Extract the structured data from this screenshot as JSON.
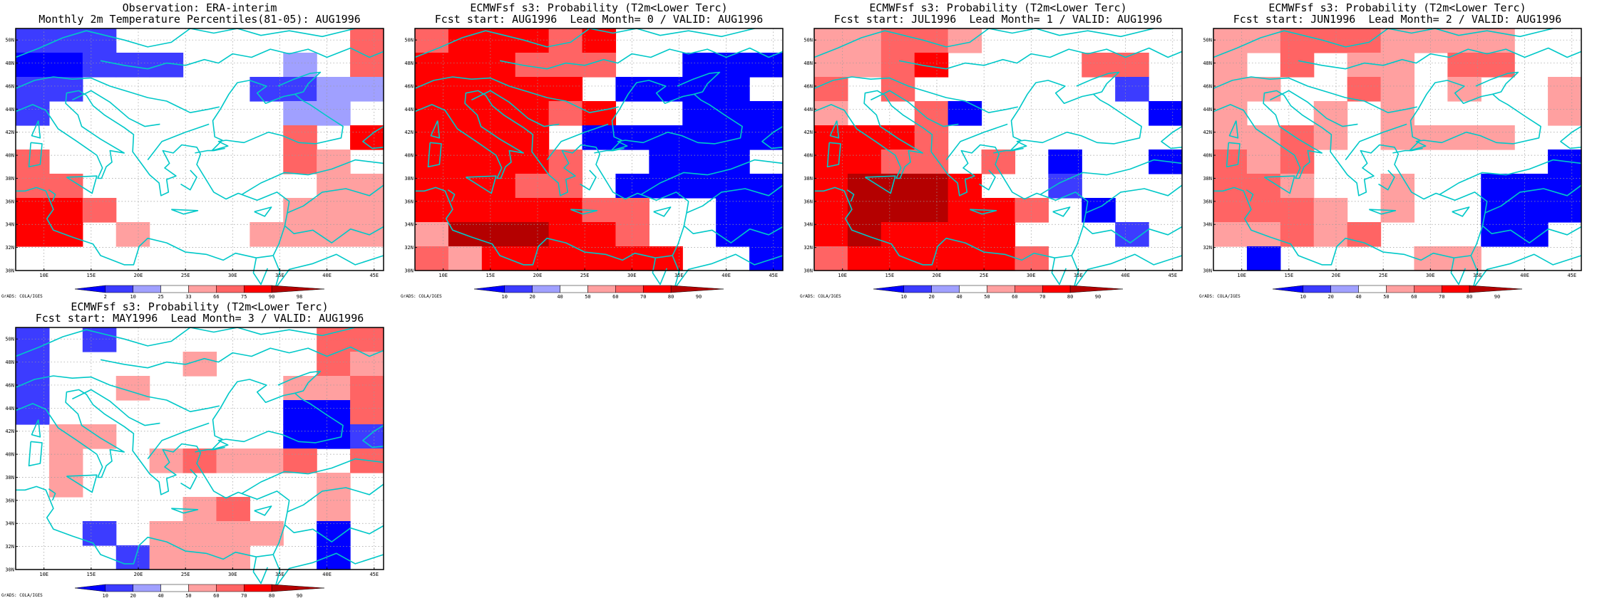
{
  "panels": [
    {
      "id": "obs",
      "title_line1": "Observation: ERA-interim",
      "title_line2": "Monthly 2m Temperature Percentiles(81-05): AUG1996",
      "colorbar_labels": [
        "2",
        "10",
        "25",
        "33",
        "66",
        "75",
        "90",
        "98"
      ],
      "credit": "GrADS: COLA/IGES"
    },
    {
      "id": "lead0",
      "title_line1": "ECMWFsf s3: Probability (T2m<Lower Terc)",
      "title_line2": "Fcst start: AUG1996  Lead Month= 0 / VALID: AUG1996",
      "colorbar_labels": [
        "10",
        "20",
        "40",
        "50",
        "60",
        "70",
        "80",
        "90"
      ],
      "credit": "GrADS: COLA/IGES"
    },
    {
      "id": "lead1",
      "title_line1": "ECMWFsf s3: Probability (T2m<Lower Terc)",
      "title_line2": "Fcst start: JUL1996  Lead Month= 1 / VALID: AUG1996",
      "colorbar_labels": [
        "10",
        "20",
        "40",
        "50",
        "60",
        "70",
        "80",
        "90"
      ],
      "credit": "GrADS: COLA/IGES"
    },
    {
      "id": "lead2",
      "title_line1": "ECMWFsf s3: Probability (T2m<Lower Terc)",
      "title_line2": "Fcst start: JUN1996  Lead Month= 2 / VALID: AUG1996",
      "colorbar_labels": [
        "10",
        "20",
        "40",
        "50",
        "60",
        "70",
        "80",
        "90"
      ],
      "credit": "GrADS: COLA/IGES"
    },
    {
      "id": "lead3",
      "title_line1": "ECMWFsf s3: Probability (T2m<Lower Terc)",
      "title_line2": "Fcst start: MAY1996  Lead Month= 3 / VALID: AUG1996",
      "colorbar_labels": [
        "10",
        "20",
        "40",
        "50",
        "60",
        "70",
        "80",
        "90"
      ],
      "credit": "GrADS: COLA/IGES"
    }
  ],
  "axes": {
    "lat_labels": [
      "30N",
      "32N",
      "34N",
      "36N",
      "38N",
      "40N",
      "42N",
      "44N",
      "46N",
      "48N",
      "50N"
    ],
    "lon_labels": [
      "10E",
      "15E",
      "20E",
      "25E",
      "30E",
      "35E",
      "40E",
      "45E"
    ],
    "lon_range": [
      7,
      46
    ],
    "lat_range": [
      30,
      51
    ],
    "grid": "dotted"
  },
  "colors": {
    "scale": [
      "#0000ff",
      "#3c3cff",
      "#a0a0ff",
      "#ffffff",
      "#ffa0a0",
      "#ff6464",
      "#ff0000",
      "#b40000"
    ],
    "coastline": "#00c8c8"
  }
}
